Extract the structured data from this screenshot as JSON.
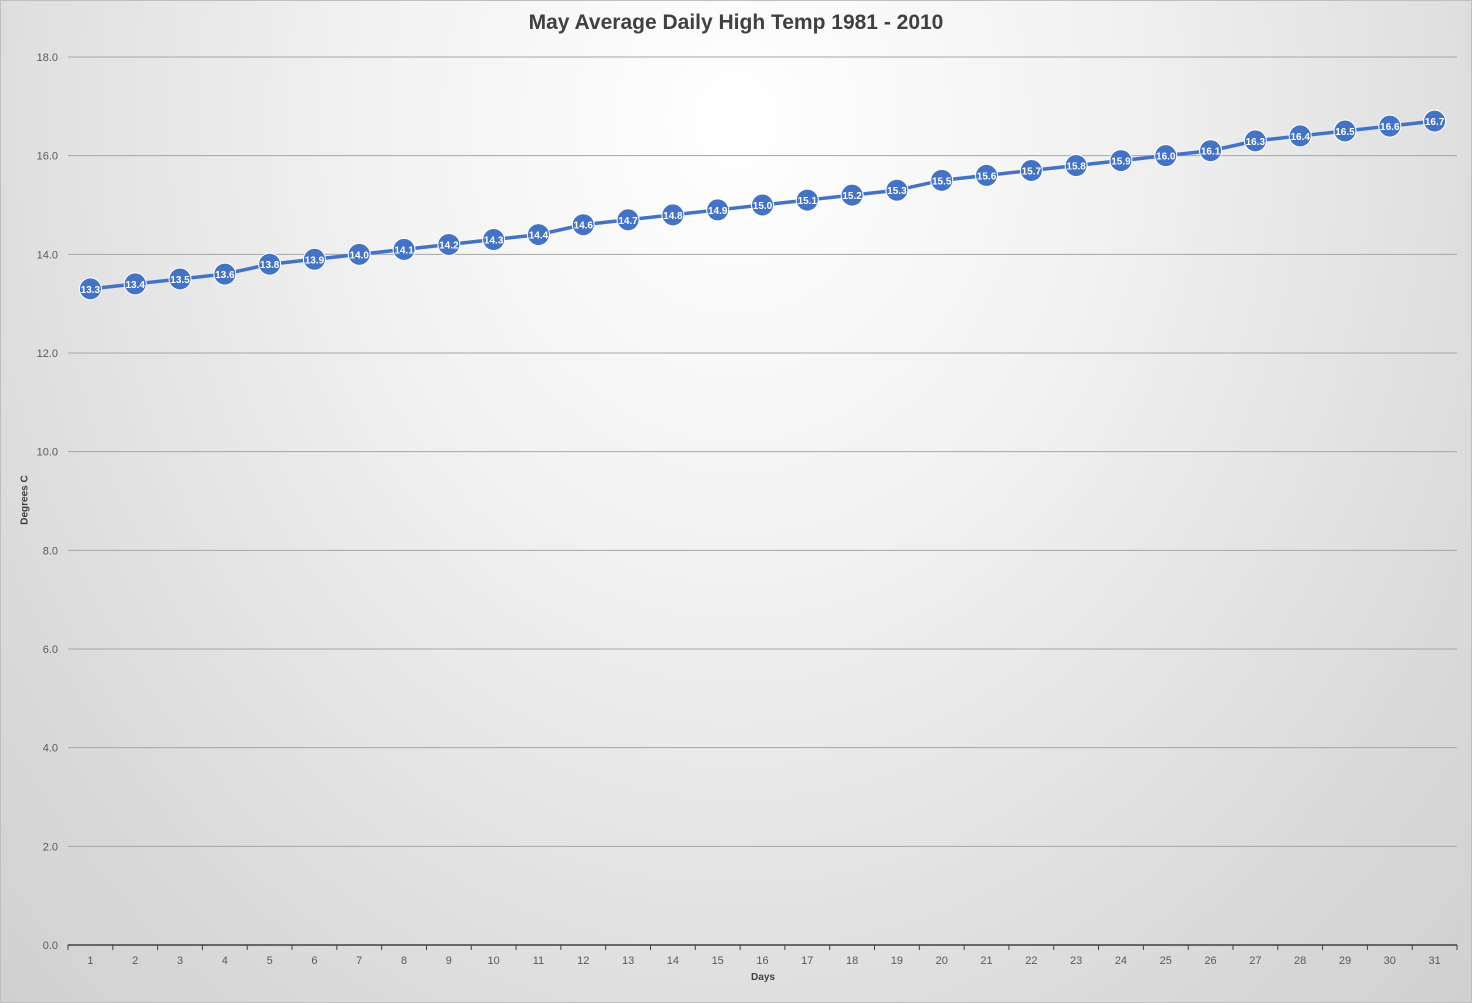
{
  "chart_data": {
    "type": "line",
    "title": "May Average Daily High Temp 1981 - 2010",
    "xlabel": "Days",
    "ylabel": "Degrees C",
    "ylim": [
      0,
      18
    ],
    "yticks": [
      "0.0",
      "2.0",
      "4.0",
      "6.0",
      "8.0",
      "10.0",
      "12.0",
      "14.0",
      "16.0",
      "18.0"
    ],
    "categories": [
      "1",
      "2",
      "3",
      "4",
      "5",
      "6",
      "7",
      "8",
      "9",
      "10",
      "11",
      "12",
      "13",
      "14",
      "15",
      "16",
      "17",
      "18",
      "19",
      "20",
      "21",
      "22",
      "23",
      "24",
      "25",
      "26",
      "27",
      "28",
      "29",
      "30",
      "31"
    ],
    "series": [
      {
        "color": "#4472c4",
        "values": [
          13.3,
          13.4,
          13.5,
          13.6,
          13.8,
          13.9,
          14.0,
          14.1,
          14.2,
          14.3,
          14.4,
          14.6,
          14.7,
          14.8,
          14.9,
          15.0,
          15.1,
          15.2,
          15.3,
          15.5,
          15.6,
          15.7,
          15.8,
          15.9,
          16.0,
          16.1,
          16.3,
          16.4,
          16.5,
          16.6,
          16.7
        ],
        "labels": [
          "13.3",
          "13.4",
          "13.5",
          "13.6",
          "13.8",
          "13.9",
          "14.0",
          "14.1",
          "14.2",
          "14.3",
          "14.4",
          "14.6",
          "14.7",
          "14.8",
          "14.9",
          "15.0",
          "15.1",
          "15.2",
          "15.3",
          "15.5",
          "15.6",
          "15.7",
          "15.8",
          "15.9",
          "16.0",
          "16.1",
          "16.3",
          "16.4",
          "16.5",
          "16.6",
          "16.7"
        ]
      }
    ],
    "grid": true,
    "legend": "none"
  }
}
